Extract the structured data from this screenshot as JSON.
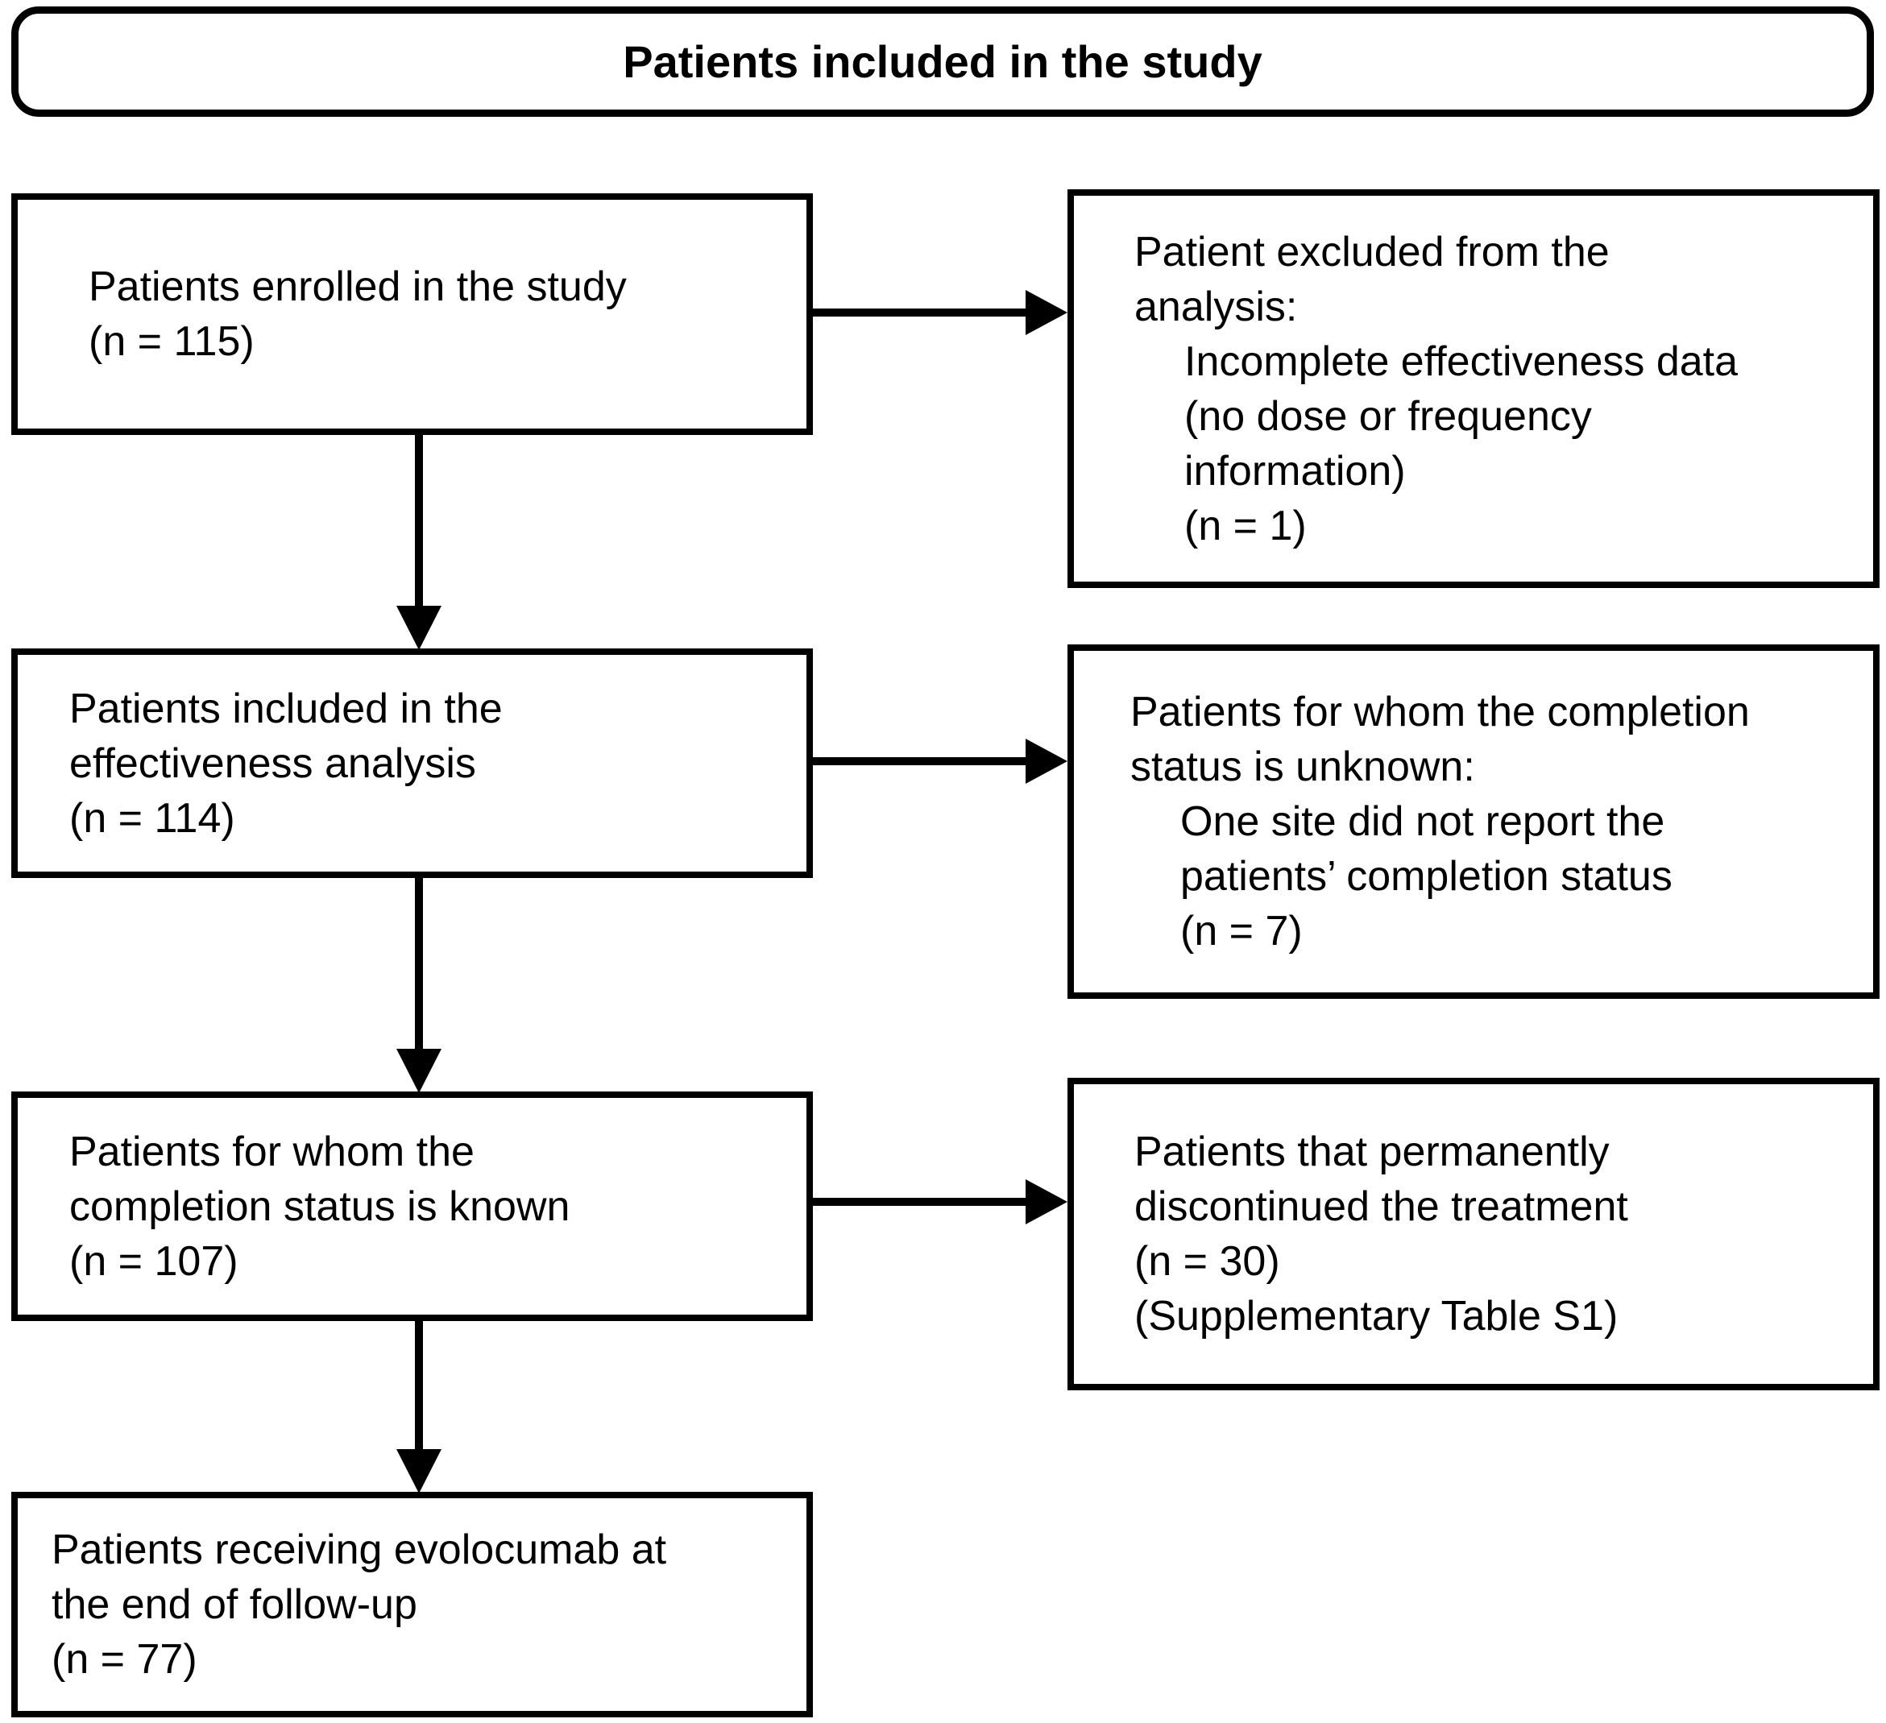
{
  "figure": {
    "title": "Patients included in the study"
  },
  "boxes": {
    "enrolled": {
      "lines": [
        "Patients enrolled in the study",
        "(n = 115)"
      ]
    },
    "effectiveness_analysis": {
      "lines": [
        "Patients included in the",
        "effectiveness analysis",
        "(n = 114)"
      ]
    },
    "completion_known": {
      "lines": [
        "Patients for whom the",
        "completion status is known",
        "(n = 107)"
      ]
    },
    "receiving_at_end": {
      "lines": [
        "Patients receiving evolocumab at",
        "the end of follow-up",
        "(n = 77)"
      ]
    },
    "excluded": {
      "lines": [
        "Patient excluded from the",
        "analysis:",
        "Incomplete effectiveness data",
        "(no dose or frequency",
        "information)",
        "(n = 1)"
      ]
    },
    "completion_unknown": {
      "lines": [
        "Patients for whom the completion",
        "status is unknown:",
        "One site did not report the",
        "patients’ completion status",
        "(n = 7)"
      ]
    },
    "discontinued": {
      "lines": [
        "Patients that permanently",
        "discontinued the treatment",
        "(n = 30)",
        "(Supplementary Table S1)"
      ]
    }
  },
  "colors": {
    "line_color": "#000000",
    "background": "#ffffff"
  }
}
